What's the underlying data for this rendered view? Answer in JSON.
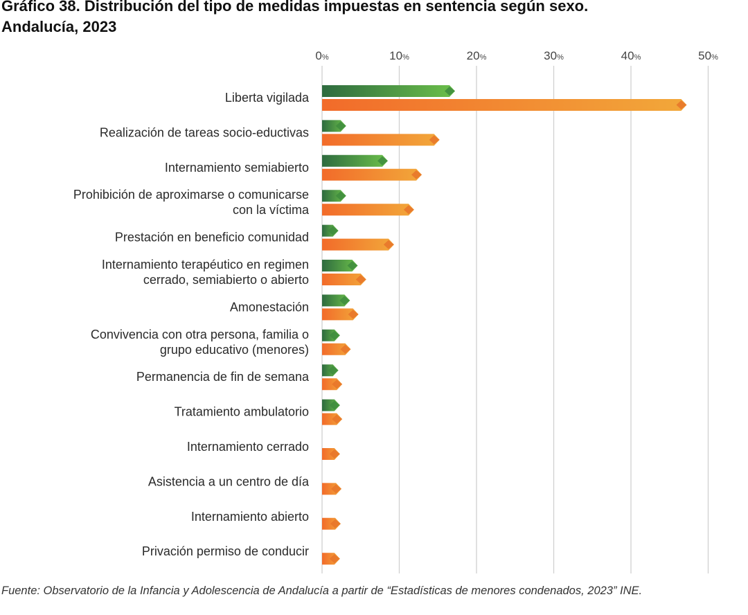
{
  "title_line1": "Gráfico 38. Distribución del tipo de medidas impuestas en sentencia según sexo.",
  "title_line2": "Andalucía, 2023",
  "source": "Fuente: Observatorio de la Infancia y Adolescencia de Andalucía a partir de “Estadísticas de menores condenados, 2023” INE.",
  "colors": {
    "series_a_start": "#2e6b3f",
    "series_a_end": "#6cc04a",
    "series_b_start": "#f26b2a",
    "series_b_end": "#f2a83a",
    "grid": "#d0d0d0",
    "axis_text": "#444444"
  },
  "chart_data": {
    "type": "bar",
    "orientation": "horizontal",
    "title": "Gráfico 38. Distribución del tipo de medidas impuestas en sentencia según sexo. Andalucía, 2023",
    "xlim": [
      0,
      50
    ],
    "ticks": [
      0,
      10,
      20,
      30,
      40,
      50
    ],
    "tick_suffix": "%",
    "grid": true,
    "legend": "none",
    "categories": [
      [
        "Liberta vigilada"
      ],
      [
        "Realización de tareas socio-eductivas"
      ],
      [
        "Internamiento semiabierto"
      ],
      [
        "Prohibición de aproximarse o comunicarse",
        "con la víctima"
      ],
      [
        "Prestación en beneficio comunidad"
      ],
      [
        "Internamiento terapéutico en regimen",
        "cerrado, semiabierto o abierto"
      ],
      [
        "Amonestación"
      ],
      [
        "Convivencia con otra persona, familia o",
        "grupo educativo (menores)"
      ],
      [
        "Permanencia de fin de semana"
      ],
      [
        "Tratamiento ambulatorio"
      ],
      [
        "Internamiento cerrado"
      ],
      [
        "Asistencia a un centro de día"
      ],
      [
        "Internamiento abierto"
      ],
      [
        "Privación permiso de conducir"
      ]
    ],
    "series": [
      {
        "name": "green series",
        "values": [
          16.5,
          2.4,
          7.8,
          2.4,
          1.4,
          3.9,
          2.9,
          1.6,
          1.4,
          1.6,
          0,
          0,
          0,
          0
        ]
      },
      {
        "name": "orange series",
        "values": [
          46.5,
          14.5,
          12.2,
          11.2,
          8.6,
          5.0,
          4.0,
          3.0,
          1.9,
          1.9,
          1.6,
          1.8,
          1.7,
          1.6
        ]
      }
    ]
  }
}
